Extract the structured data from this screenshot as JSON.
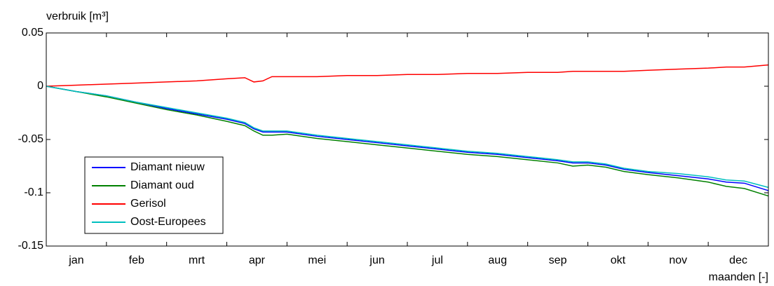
{
  "chart_data": {
    "type": "line",
    "y_label": "verbruik [m³]",
    "x_label": "maanden [-]",
    "categories": [
      "jan",
      "feb",
      "mrt",
      "apr",
      "mei",
      "jun",
      "jul",
      "aug",
      "sep",
      "okt",
      "nov",
      "dec"
    ],
    "x": [
      0,
      0.5,
      1,
      1.5,
      2,
      2.5,
      3,
      3.3,
      3.45,
      3.6,
      3.75,
      4,
      4.5,
      5,
      5.5,
      6,
      6.5,
      7,
      7.5,
      8,
      8.5,
      8.75,
      9,
      9.3,
      9.6,
      10,
      10.5,
      11,
      11.3,
      11.6,
      12
    ],
    "xlim": [
      0,
      12
    ],
    "ylim": [
      -0.15,
      0.05
    ],
    "yticks": [
      0.05,
      0,
      -0.05,
      -0.1,
      -0.15
    ],
    "legend": "lower left",
    "series": [
      {
        "name": "Diamant nieuw",
        "color": "#0000ff",
        "values": [
          0,
          -0.005,
          -0.009,
          -0.015,
          -0.021,
          -0.026,
          -0.031,
          -0.035,
          -0.04,
          -0.043,
          -0.043,
          -0.043,
          -0.047,
          -0.05,
          -0.053,
          -0.056,
          -0.059,
          -0.062,
          -0.064,
          -0.067,
          -0.07,
          -0.072,
          -0.072,
          -0.074,
          -0.078,
          -0.081,
          -0.084,
          -0.087,
          -0.09,
          -0.091,
          -0.098
        ]
      },
      {
        "name": "Diamant oud",
        "color": "#008000",
        "values": [
          0,
          -0.005,
          -0.01,
          -0.016,
          -0.022,
          -0.027,
          -0.033,
          -0.037,
          -0.042,
          -0.046,
          -0.046,
          -0.045,
          -0.049,
          -0.052,
          -0.055,
          -0.058,
          -0.061,
          -0.064,
          -0.066,
          -0.069,
          -0.072,
          -0.075,
          -0.074,
          -0.076,
          -0.08,
          -0.083,
          -0.086,
          -0.09,
          -0.094,
          -0.096,
          -0.103
        ]
      },
      {
        "name": "Gerisol",
        "color": "#ff0000",
        "values": [
          0,
          0.001,
          0.002,
          0.003,
          0.004,
          0.005,
          0.007,
          0.008,
          0.004,
          0.005,
          0.009,
          0.009,
          0.009,
          0.01,
          0.01,
          0.011,
          0.011,
          0.012,
          0.012,
          0.013,
          0.013,
          0.014,
          0.014,
          0.014,
          0.014,
          0.015,
          0.016,
          0.017,
          0.018,
          0.018,
          0.02
        ]
      },
      {
        "name": "Oost-Europees",
        "color": "#00bfbf",
        "values": [
          0,
          -0.005,
          -0.009,
          -0.015,
          -0.02,
          -0.025,
          -0.03,
          -0.034,
          -0.039,
          -0.042,
          -0.042,
          -0.042,
          -0.046,
          -0.049,
          -0.052,
          -0.055,
          -0.058,
          -0.061,
          -0.063,
          -0.066,
          -0.069,
          -0.071,
          -0.071,
          -0.073,
          -0.077,
          -0.08,
          -0.082,
          -0.085,
          -0.088,
          -0.089,
          -0.095
        ]
      }
    ]
  }
}
